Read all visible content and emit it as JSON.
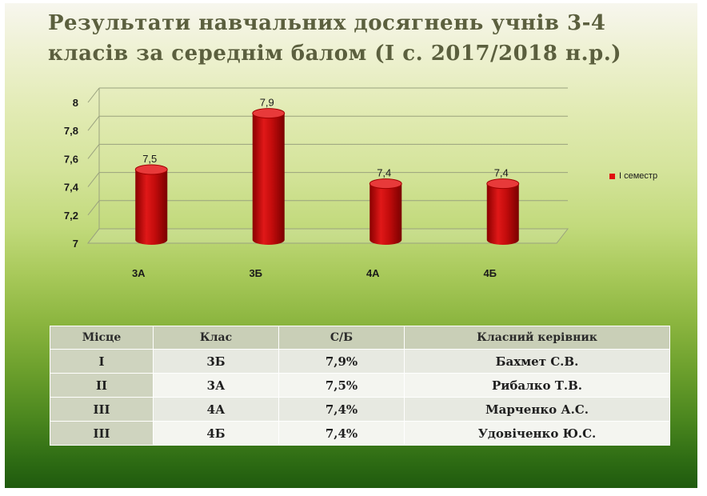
{
  "title": "Результати навчальних досягнень учнів 3-4 класів за середнім балом (І с. 2017/2018 н.р.)",
  "chart_data": {
    "type": "bar",
    "categories": [
      "3А",
      "3Б",
      "4А",
      "4Б"
    ],
    "series": [
      {
        "name": "І семестр",
        "values": [
          7.5,
          7.9,
          7.4,
          7.4
        ],
        "color": "#d41010"
      }
    ],
    "data_labels": [
      "7,5",
      "7,9",
      "7,4",
      "7,4"
    ],
    "y_ticks": [
      "7",
      "7,2",
      "7,4",
      "7,6",
      "7,8",
      "8"
    ],
    "ylim": [
      7,
      8
    ],
    "grid": true,
    "legend_position": "right"
  },
  "table": {
    "headers": [
      "Місце",
      "Клас",
      "С/Б",
      "Класний керівник"
    ],
    "rows": [
      [
        "І",
        "3Б",
        "7,9%",
        "Бахмет С.В."
      ],
      [
        "ІІ",
        "3А",
        "7,5%",
        "Рибалко Т.В."
      ],
      [
        "ІІІ",
        "4А",
        "7,4%",
        "Марченко А.С."
      ],
      [
        "ІІІ",
        "4Б",
        "7,4%",
        "Удовіченко Ю.С."
      ]
    ]
  }
}
